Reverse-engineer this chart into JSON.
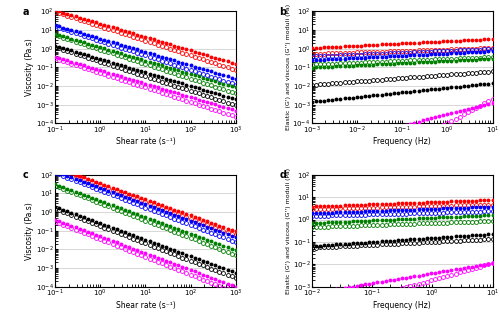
{
  "colors": [
    "red",
    "blue",
    "green",
    "black",
    "magenta"
  ],
  "panel_a": {
    "title": "a",
    "xlabel": "Shear rate (s⁻¹)",
    "ylabel": "Viscosity (Pa.s)",
    "xlim": [
      0.1,
      1000
    ],
    "ylim": [
      0.0001,
      100
    ],
    "up_prefactor": [
      22.0,
      3.5,
      1.2,
      0.28,
      0.07
    ],
    "up_slope": [
      -0.72,
      -0.72,
      -0.72,
      -0.72,
      -0.72
    ],
    "dn_prefactor": [
      16.0,
      2.6,
      0.9,
      0.2,
      0.05
    ],
    "dn_slope": [
      -0.78,
      -0.78,
      -0.78,
      -0.78,
      -0.78
    ]
  },
  "panel_b": {
    "title": "b",
    "xlabel": "Frequency (Hz)",
    "ylabel": "Elastic (G') and viscous (G'') moduli (Pa)",
    "xlim": [
      0.001,
      10
    ],
    "ylim": [
      0.0001,
      100
    ],
    "gp_prefactor": [
      2.5,
      0.55,
      0.22,
      0.008,
      0.0003
    ],
    "gp_slope": [
      0.12,
      0.12,
      0.12,
      0.25,
      0.6
    ],
    "gpp_prefactor": [
      0.9,
      0.75,
      0.28,
      0.04,
      0.0001
    ],
    "gpp_slope": [
      0.08,
      0.1,
      0.1,
      0.18,
      1.3
    ]
  },
  "panel_c": {
    "title": "c",
    "xlabel": "Shear rate (s⁻¹)",
    "ylabel": "Viscosity (Pa.s)",
    "xlim": [
      0.1,
      1000
    ],
    "ylim": [
      0.0001,
      100
    ],
    "up_prefactor": [
      35.0,
      20.0,
      4.0,
      0.25,
      0.05
    ],
    "up_slope": [
      -0.86,
      -0.88,
      -0.88,
      -0.88,
      -0.9
    ],
    "dn_prefactor": [
      28.0,
      15.0,
      3.0,
      0.18,
      0.035
    ],
    "dn_slope": [
      -0.9,
      -0.93,
      -0.93,
      -0.93,
      -0.95
    ]
  },
  "panel_d": {
    "title": "d",
    "xlabel": "Frequency (Hz)",
    "ylabel": "Elastic (G') and viscous (G'') moduli (Pa)",
    "xlim": [
      0.01,
      10
    ],
    "ylim": [
      0.001,
      100
    ],
    "gp_prefactor": [
      6.0,
      3.0,
      1.2,
      0.15,
      0.004
    ],
    "gp_slope": [
      0.1,
      0.1,
      0.12,
      0.18,
      0.45
    ],
    "gpp_prefactor": [
      4.0,
      2.0,
      0.7,
      0.1,
      0.002
    ],
    "gpp_slope": [
      0.07,
      0.07,
      0.09,
      0.13,
      0.75
    ]
  },
  "grid_color": "#c8c8c8",
  "marker_size": 2.8,
  "n_points": 45,
  "label_fontsize": 5.5,
  "tick_fontsize": 5,
  "panel_label_fontsize": 7
}
